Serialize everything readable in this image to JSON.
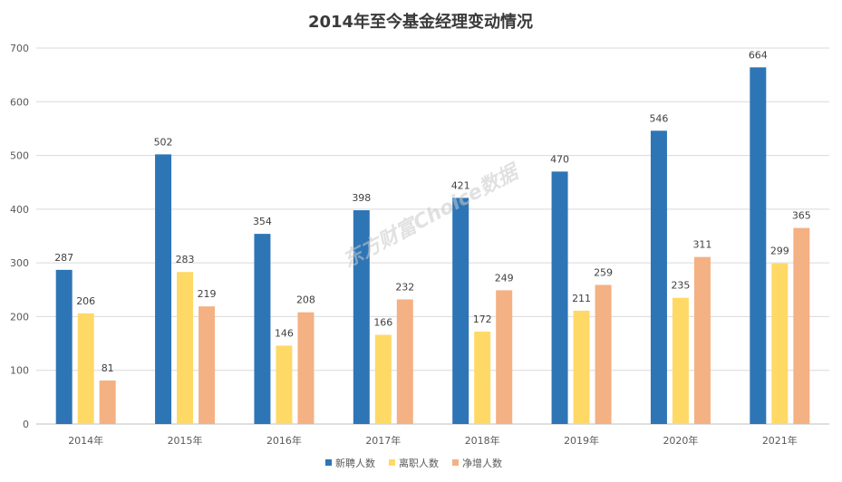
{
  "chart_data": {
    "type": "bar",
    "title": "2014年至今基金经理变动情况",
    "categories": [
      "2014年",
      "2015年",
      "2016年",
      "2017年",
      "2018年",
      "2019年",
      "2020年",
      "2021年"
    ],
    "series": [
      {
        "name": "新聘人数",
        "color": "#2e75b6",
        "values": [
          287,
          502,
          354,
          398,
          421,
          470,
          546,
          664
        ]
      },
      {
        "name": "离职人数",
        "color": "#ffd966",
        "values": [
          206,
          283,
          146,
          166,
          172,
          211,
          235,
          299
        ]
      },
      {
        "name": "净增人数",
        "color": "#f4b183",
        "values": [
          81,
          219,
          208,
          232,
          249,
          259,
          311,
          365
        ]
      }
    ],
    "ylim": [
      0,
      700
    ],
    "yticks": [
      0,
      100,
      200,
      300,
      400,
      500,
      600,
      700
    ],
    "grid": true,
    "legend": "bottom-center",
    "xlabel": "",
    "ylabel": ""
  },
  "watermark": {
    "text": "东方财富Choice数据"
  }
}
